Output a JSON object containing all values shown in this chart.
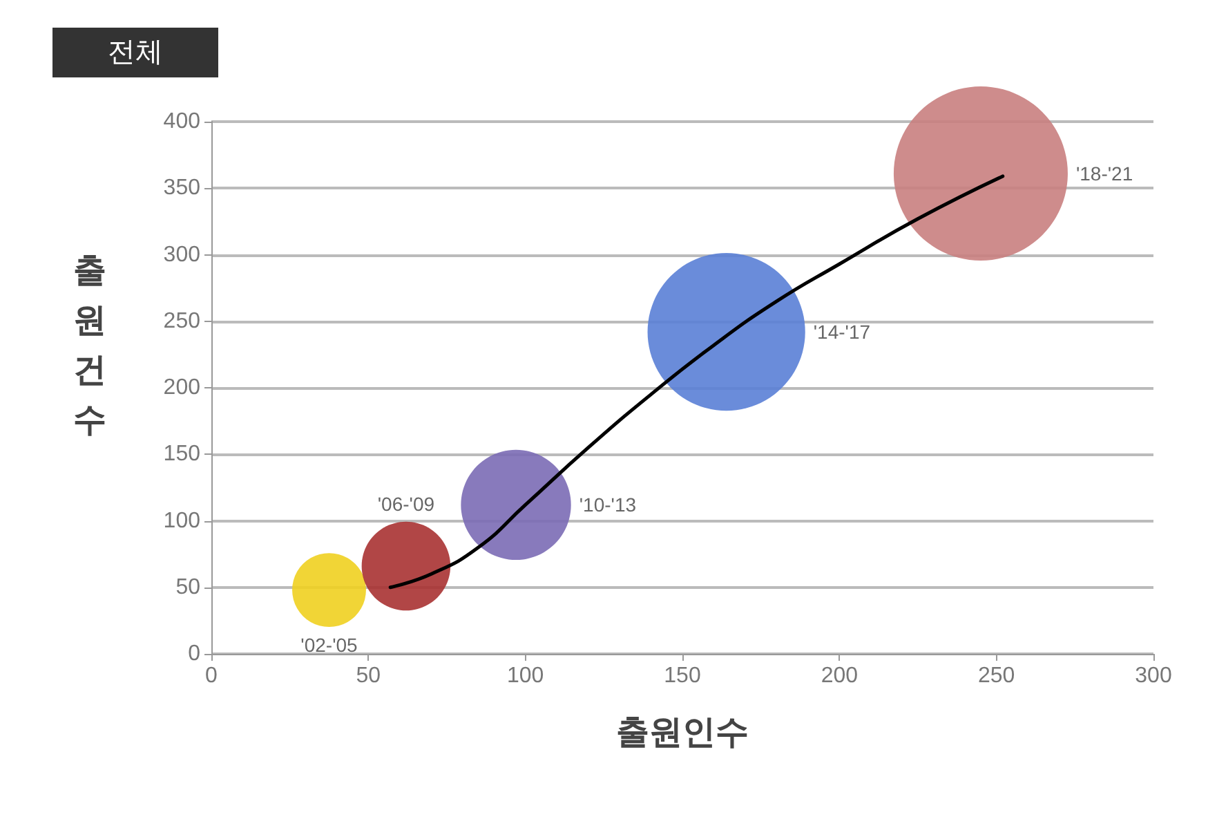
{
  "chart_data": {
    "type": "bubble",
    "title": "전체",
    "xlabel": "출원인수",
    "ylabel": "출원건수",
    "xlim": [
      0,
      300
    ],
    "xticks": [
      0,
      50,
      100,
      150,
      200,
      250,
      300
    ],
    "ylim": [
      0,
      400
    ],
    "yticks": [
      0,
      50,
      100,
      150,
      200,
      250,
      300,
      350,
      400
    ],
    "grid": "y",
    "legend": false,
    "series": [
      {
        "name": "'02-'05",
        "color": "#f0d020",
        "x": [
          37.5
        ],
        "values": [
          48
        ],
        "sizes": [
          0.18
        ]
      },
      {
        "name": "'06-'09",
        "color": "#a83232",
        "x": [
          62
        ],
        "values": [
          66
        ],
        "sizes": [
          0.26
        ]
      },
      {
        "name": "'10-'13",
        "color": "#7b6bb5",
        "x": [
          97
        ],
        "values": [
          112
        ],
        "sizes": [
          0.4
        ]
      },
      {
        "name": "'14-'17",
        "color": "#5a7fd6",
        "x": [
          164
        ],
        "values": [
          242
        ],
        "sizes": [
          0.82
        ]
      },
      {
        "name": "'18-'21",
        "color": "#c98080",
        "x": [
          245
        ],
        "values": [
          361
        ],
        "sizes": [
          1
        ]
      },
      {
        "type": "line",
        "color": "#000000",
        "marker": "none",
        "x": [
          57,
          70,
          85,
          100,
          120,
          140,
          160,
          180,
          200,
          225,
          252
        ],
        "values": [
          50,
          60,
          80,
          112,
          155,
          195,
          232,
          265,
          293,
          327,
          359
        ]
      }
    ]
  }
}
